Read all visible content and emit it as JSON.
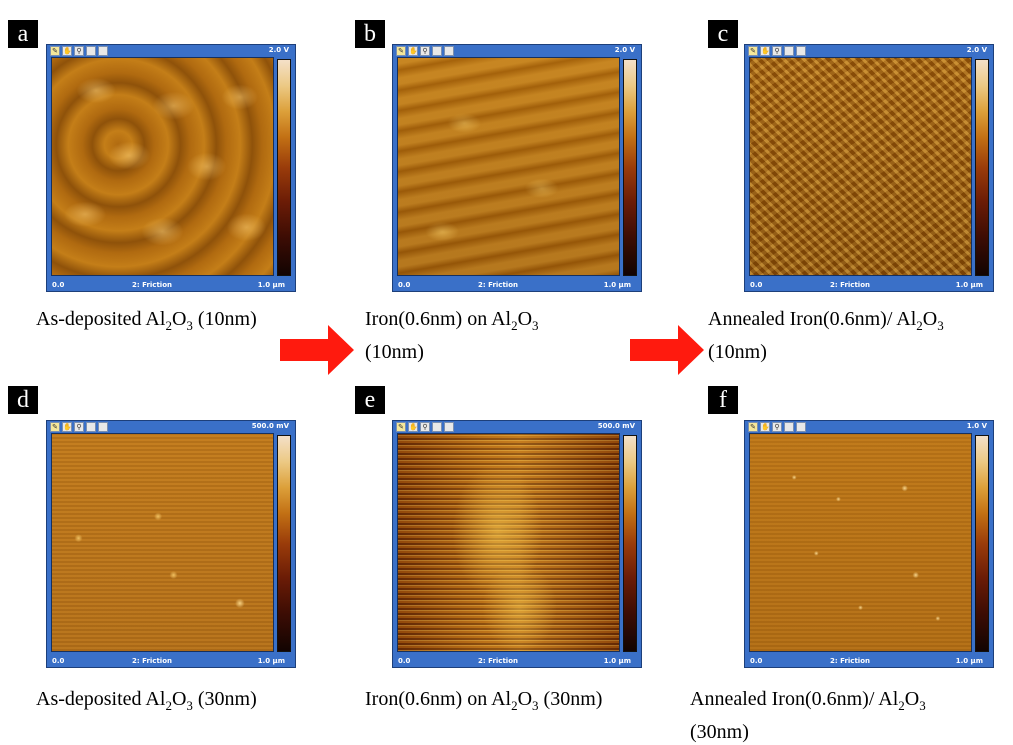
{
  "colors": {
    "window_frame": "#3a70c8",
    "arrow": "#ff1a0e",
    "label_bg": "#000000"
  },
  "tool_icons": [
    "pencil-icon",
    "hand-icon",
    "magnifier-icon",
    "zoom-out-icon",
    "reset-icon"
  ],
  "panels": [
    {
      "letter": "a",
      "scale_top": "2.0 V",
      "footer_left": "0.0",
      "footer_mid": "2: Friction",
      "footer_right": "1.0 µm",
      "caption": {
        "line1_pre": "As-deposited Al",
        "sub1": "2",
        "mid": "O",
        "sub2": "3",
        "line1_post": " (10nm)",
        "line2": ""
      }
    },
    {
      "letter": "b",
      "scale_top": "2.0 V",
      "footer_left": "0.0",
      "footer_mid": "2: Friction",
      "footer_right": "1.0 µm",
      "caption": {
        "line1_pre": "Iron(0.6nm) on Al",
        "sub1": "2",
        "mid": "O",
        "sub2": "3",
        "line1_post": "",
        "line2": "(10nm)"
      }
    },
    {
      "letter": "c",
      "scale_top": "2.0 V",
      "footer_left": "0.0",
      "footer_mid": "2: Friction",
      "footer_right": "1.0 µm",
      "caption": {
        "line1_pre": "Annealed Iron(0.6nm)/ Al",
        "sub1": "2",
        "mid": "O",
        "sub2": "3",
        "line1_post": "",
        "line2": "(10nm)"
      }
    },
    {
      "letter": "d",
      "scale_top": "500.0 mV",
      "footer_left": "0.0",
      "footer_mid": "2: Friction",
      "footer_right": "1.0 µm",
      "caption": {
        "line1_pre": "As-deposited Al",
        "sub1": "2",
        "mid": "O",
        "sub2": "3",
        "line1_post": " (30nm)",
        "line2": ""
      }
    },
    {
      "letter": "e",
      "scale_top": "500.0 mV",
      "footer_left": "0.0",
      "footer_mid": "2: Friction",
      "footer_right": "1.0 µm",
      "caption": {
        "line1_pre": "Iron(0.6nm) on Al",
        "sub1": "2",
        "mid": "O",
        "sub2": "3",
        "line1_post": " (30nm)",
        "line2": ""
      }
    },
    {
      "letter": "f",
      "scale_top": "1.0 V",
      "footer_left": "0.0",
      "footer_mid": "2: Friction",
      "footer_right": "1.0 µm",
      "caption": {
        "line1_pre": "Annealed Iron(0.6nm)/ Al",
        "sub1": "2",
        "mid": "O",
        "sub2": "3",
        "line1_post": "",
        "line2": "(30nm)"
      }
    }
  ]
}
